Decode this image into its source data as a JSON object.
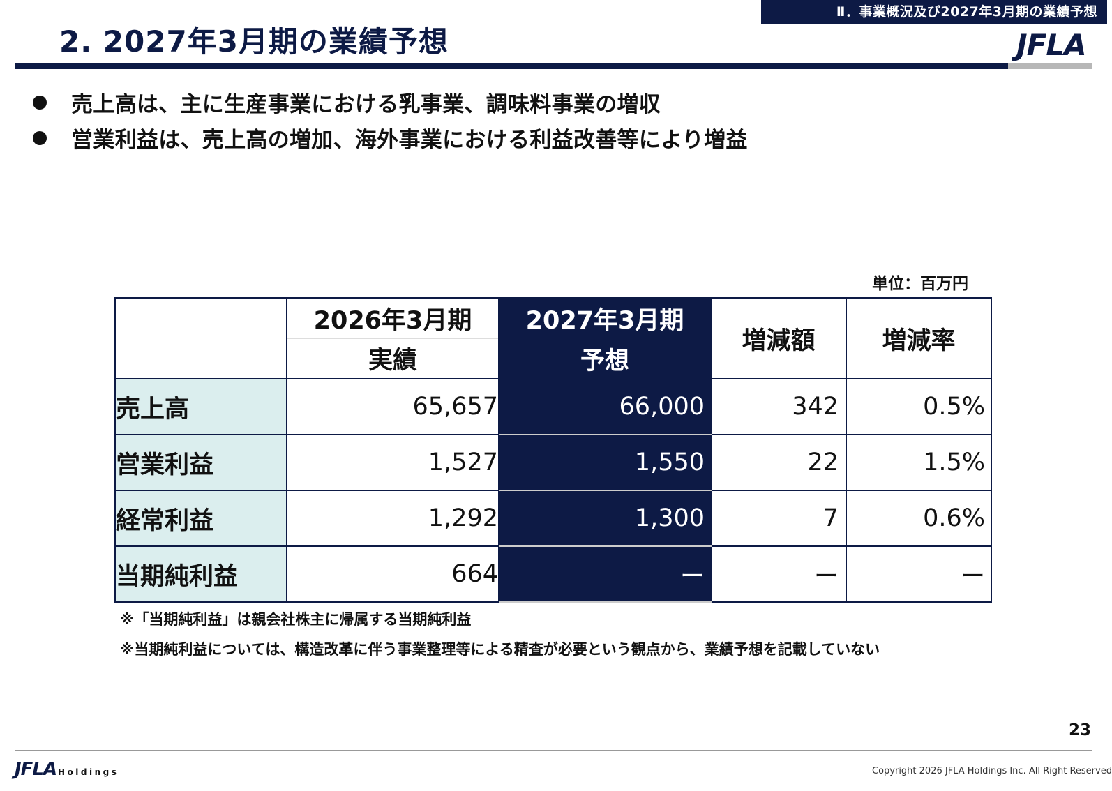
{
  "header": {
    "section_tag": "Ⅱ．事業概況及び2027年3月期の業績予想",
    "title": "2. 2027年3月期の業績予想",
    "logo_text": "JFLA"
  },
  "bullets": [
    "売上高は、主に生産事業における乳事業、調味料事業の増収",
    "営業利益は、売上高の増加、海外事業における利益改善等により増益"
  ],
  "table": {
    "unit": "単位：百万円",
    "headers": {
      "col1_line1": "2026年3月期",
      "col1_line2": "実績",
      "col2_line1": "2027年3月期",
      "col2_line2": "予想",
      "col3": "増減額",
      "col4": "増減率"
    },
    "rows": [
      {
        "label": "売上高",
        "actual": "65,657",
        "forecast": "66,000",
        "diff": "342",
        "rate": "0.5%"
      },
      {
        "label": "営業利益",
        "actual": "1,527",
        "forecast": "1,550",
        "diff": "22",
        "rate": "1.5%"
      },
      {
        "label": "経常利益",
        "actual": "1,292",
        "forecast": "1,300",
        "diff": "7",
        "rate": "0.6%"
      },
      {
        "label": "当期純利益",
        "actual": "664",
        "forecast": "ー",
        "diff": "ー",
        "rate": "ー"
      }
    ]
  },
  "notes": [
    "※「当期純利益」は親会社株主に帰属する当期純利益",
    "※当期純利益については、構造改革に伴う事業整理等による精査が必要という観点から、業績予想を記載していない"
  ],
  "footer": {
    "page_number": "23",
    "logo_mark": "JFLA",
    "logo_text": "Holdings",
    "copyright": "Copyright 2026 JFLA Holdings Inc.  All Right Reserved"
  }
}
